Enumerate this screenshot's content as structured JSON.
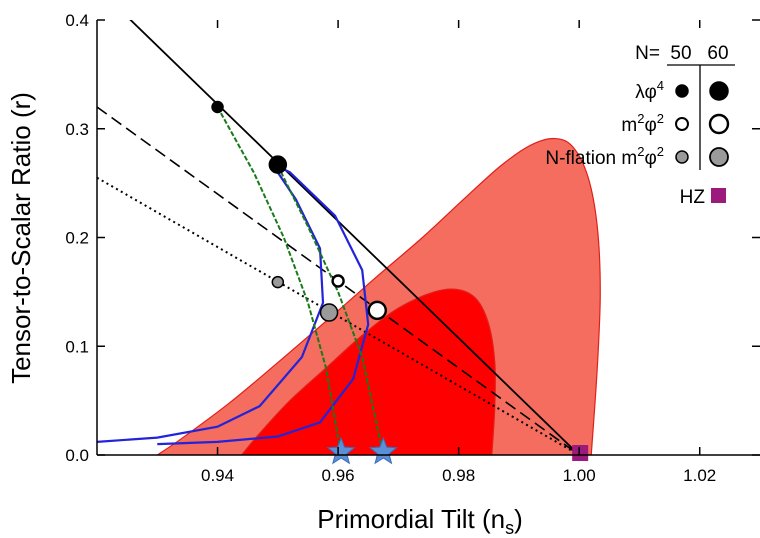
{
  "chart_data": {
    "type": "scatter",
    "xlabel_main": "Primordial Tilt (n",
    "xlabel_sub": "s",
    "xlabel_end": ")",
    "ylabel": "Tensor-to-Scalar Ratio (r)",
    "xlim": [
      0.92,
      1.03
    ],
    "ylim": [
      0.0,
      0.4
    ],
    "x_ticks": [
      "0.94",
      "0.96",
      "0.98",
      "1.00",
      "1.02"
    ],
    "x_tick_values": [
      0.94,
      0.96,
      0.98,
      1.0,
      1.02
    ],
    "y_ticks": [
      "0.0",
      "0.1",
      "0.2",
      "0.3",
      "0.4"
    ],
    "y_tick_values": [
      0.0,
      0.1,
      0.2,
      0.3,
      0.4
    ],
    "regions": [
      {
        "level": "outer",
        "color": "#f46d5e",
        "polygon": [
          [
            0.93,
            0.0
          ],
          [
            0.934,
            0.015
          ],
          [
            0.942,
            0.048
          ],
          [
            0.95,
            0.085
          ],
          [
            0.958,
            0.123
          ],
          [
            0.966,
            0.162
          ],
          [
            0.974,
            0.2
          ],
          [
            0.981,
            0.236
          ],
          [
            0.987,
            0.266
          ],
          [
            0.992,
            0.285
          ],
          [
            0.996,
            0.291
          ],
          [
            0.999,
            0.283
          ],
          [
            1.0015,
            0.255
          ],
          [
            1.003,
            0.21
          ],
          [
            1.0035,
            0.15
          ],
          [
            1.003,
            0.08
          ],
          [
            1.002,
            0.0
          ]
        ]
      },
      {
        "level": "inner",
        "color": "#ff0000",
        "polygon": [
          [
            0.944,
            0.0
          ],
          [
            0.947,
            0.02
          ],
          [
            0.952,
            0.05
          ],
          [
            0.958,
            0.08
          ],
          [
            0.964,
            0.11
          ],
          [
            0.97,
            0.135
          ],
          [
            0.976,
            0.15
          ],
          [
            0.98,
            0.152
          ],
          [
            0.983,
            0.143
          ],
          [
            0.985,
            0.12
          ],
          [
            0.986,
            0.085
          ],
          [
            0.986,
            0.045
          ],
          [
            0.9855,
            0.0
          ]
        ]
      }
    ],
    "lines": [
      {
        "name": "solid",
        "style": "solid",
        "points": [
          [
            0.92,
            0.43
          ],
          [
            1.0,
            0.0
          ]
        ]
      },
      {
        "name": "dashed",
        "style": "dashed",
        "points": [
          [
            0.92,
            0.32
          ],
          [
            1.0,
            0.0
          ]
        ]
      },
      {
        "name": "dotted",
        "style": "dotted",
        "points": [
          [
            0.92,
            0.255
          ],
          [
            1.0,
            0.0
          ]
        ]
      },
      {
        "name": "blue-50",
        "style": "blue",
        "points": [
          [
            0.92,
            0.012
          ],
          [
            0.93,
            0.016
          ],
          [
            0.94,
            0.026
          ],
          [
            0.947,
            0.045
          ],
          [
            0.954,
            0.09
          ],
          [
            0.9575,
            0.14
          ],
          [
            0.957,
            0.19
          ],
          [
            0.953,
            0.235
          ],
          [
            0.949,
            0.268
          ]
        ]
      },
      {
        "name": "blue-60",
        "style": "blue",
        "points": [
          [
            0.93,
            0.01
          ],
          [
            0.94,
            0.012
          ],
          [
            0.95,
            0.017
          ],
          [
            0.957,
            0.03
          ],
          [
            0.9625,
            0.07
          ],
          [
            0.965,
            0.12
          ],
          [
            0.964,
            0.17
          ],
          [
            0.9595,
            0.22
          ],
          [
            0.952,
            0.26
          ],
          [
            0.949,
            0.268
          ]
        ]
      },
      {
        "name": "green-50",
        "style": "green",
        "points": [
          [
            0.94,
            0.32
          ],
          [
            0.946,
            0.26
          ],
          [
            0.951,
            0.2
          ],
          [
            0.955,
            0.14
          ],
          [
            0.958,
            0.08
          ],
          [
            0.9605,
            0.0
          ]
        ]
      },
      {
        "name": "green-60",
        "style": "green",
        "points": [
          [
            0.95,
            0.266
          ],
          [
            0.955,
            0.21
          ],
          [
            0.96,
            0.15
          ],
          [
            0.964,
            0.09
          ],
          [
            0.9675,
            0.0
          ]
        ]
      }
    ],
    "points": [
      {
        "series": "λφ⁴",
        "N": 50,
        "x": 0.94,
        "y": 0.32,
        "fill": "#000000",
        "size": "small"
      },
      {
        "series": "λφ⁴",
        "N": 60,
        "x": 0.95,
        "y": 0.267,
        "fill": "#000000",
        "size": "large"
      },
      {
        "series": "m²φ²",
        "N": 50,
        "x": 0.96,
        "y": 0.16,
        "fill": "#ffffff",
        "size": "small"
      },
      {
        "series": "m²φ²",
        "N": 60,
        "x": 0.9665,
        "y": 0.133,
        "fill": "#ffffff",
        "size": "large"
      },
      {
        "series": "N-flation m²φ²",
        "N": 50,
        "x": 0.95,
        "y": 0.159,
        "fill": "#9a9a9a",
        "size": "small"
      },
      {
        "series": "N-flation m²φ²",
        "N": 60,
        "x": 0.9585,
        "y": 0.131,
        "fill": "#9a9a9a",
        "size": "large"
      }
    ],
    "stars": [
      {
        "x": 0.9605,
        "y": 0.0
      },
      {
        "x": 0.9675,
        "y": 0.0
      }
    ],
    "hz_point": {
      "x": 1.0,
      "y": 0.0,
      "color": "#9c1a7b"
    },
    "legend": {
      "header_label": "N=",
      "header_50": "50",
      "header_60": "60",
      "rows": [
        {
          "base": "λφ",
          "sup": "4",
          "fill": "#000000"
        },
        {
          "base": "m",
          "sup": "2",
          "mid": "φ",
          "sup2": "2",
          "fill": "#ffffff"
        },
        {
          "base": "N-flation m",
          "sup": "2",
          "mid": "φ",
          "sup2": "2",
          "fill": "#9a9a9a"
        }
      ],
      "hz_label": "HZ",
      "hz_color": "#9c1a7b",
      "position": "top-right"
    }
  }
}
